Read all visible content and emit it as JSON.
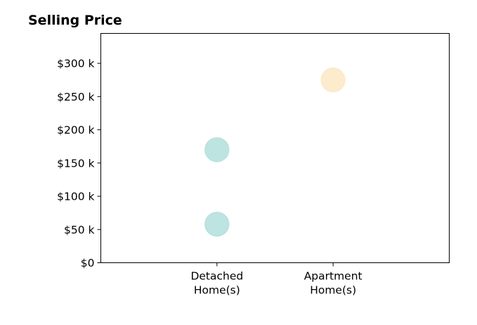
{
  "chart_data": {
    "type": "scatter",
    "title": "Selling Price",
    "categories": [
      "Detached\nHome(s)",
      "Apartment\nHome(s)"
    ],
    "x_ticks": [
      1,
      2
    ],
    "xlim": [
      0,
      3
    ],
    "ylim": [
      0,
      345000
    ],
    "y_ticks": [
      {
        "value": 0,
        "label": "$0"
      },
      {
        "value": 50000,
        "label": "$50 k"
      },
      {
        "value": 100000,
        "label": "$100 k"
      },
      {
        "value": 150000,
        "label": "$150 k"
      },
      {
        "value": 200000,
        "label": "$200 k"
      },
      {
        "value": 250000,
        "label": "$250 k"
      },
      {
        "value": 300000,
        "label": "$300 k"
      }
    ],
    "points": [
      {
        "category": "Detached\nHome(s)",
        "x": 1,
        "y": 58000,
        "color": "#b2dfdb"
      },
      {
        "category": "Detached\nHome(s)",
        "x": 1,
        "y": 170000,
        "color": "#b2dfdb"
      },
      {
        "category": "Apartment\nHome(s)",
        "x": 2,
        "y": 275000,
        "color": "#fce8c4"
      }
    ],
    "grid": false,
    "legend": "none"
  }
}
